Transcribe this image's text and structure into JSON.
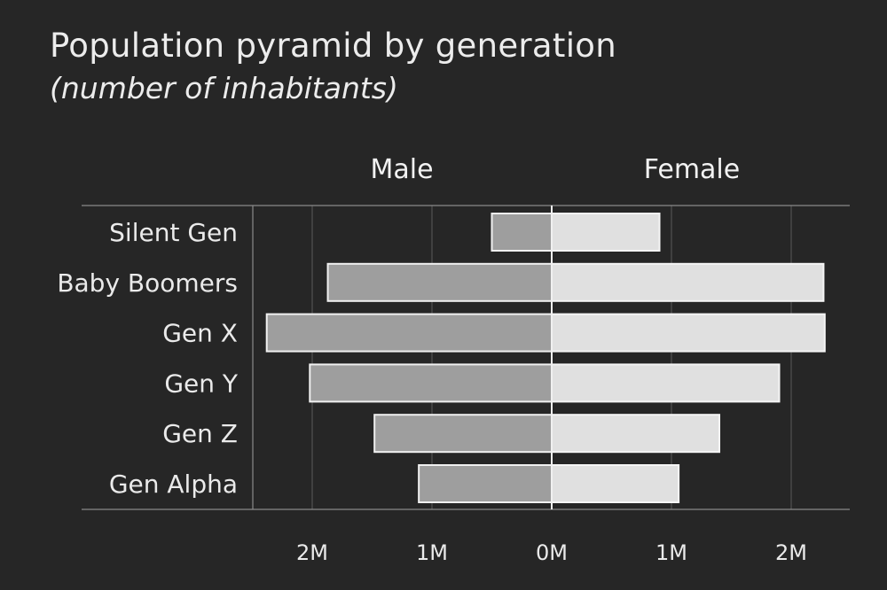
{
  "chart_data": {
    "type": "bar",
    "orientation": "horizontal-diverging",
    "title": "Population pyramid by generation",
    "subtitle": "(number of inhabitants)",
    "categories": [
      "Silent Gen",
      "Baby Boomers",
      "Gen X",
      "Gen Y",
      "Gen Z",
      "Gen Alpha"
    ],
    "series": [
      {
        "name": "Male",
        "values": [
          500000,
          1870000,
          2380000,
          2020000,
          1480000,
          1110000
        ]
      },
      {
        "name": "Female",
        "values": [
          900000,
          2270000,
          2280000,
          1900000,
          1400000,
          1060000
        ]
      }
    ],
    "x_ticks": [
      {
        "value": -2000000,
        "label": "2M"
      },
      {
        "value": -1000000,
        "label": "1M"
      },
      {
        "value": 0,
        "label": "0M"
      },
      {
        "value": 1000000,
        "label": "1M"
      },
      {
        "value": 2000000,
        "label": "2M"
      }
    ],
    "xlim": [
      -2500000,
      2500000
    ],
    "grid": true,
    "colors": {
      "male": "#9e9e9e",
      "female": "#e0e0e0",
      "background": "#262626"
    }
  }
}
